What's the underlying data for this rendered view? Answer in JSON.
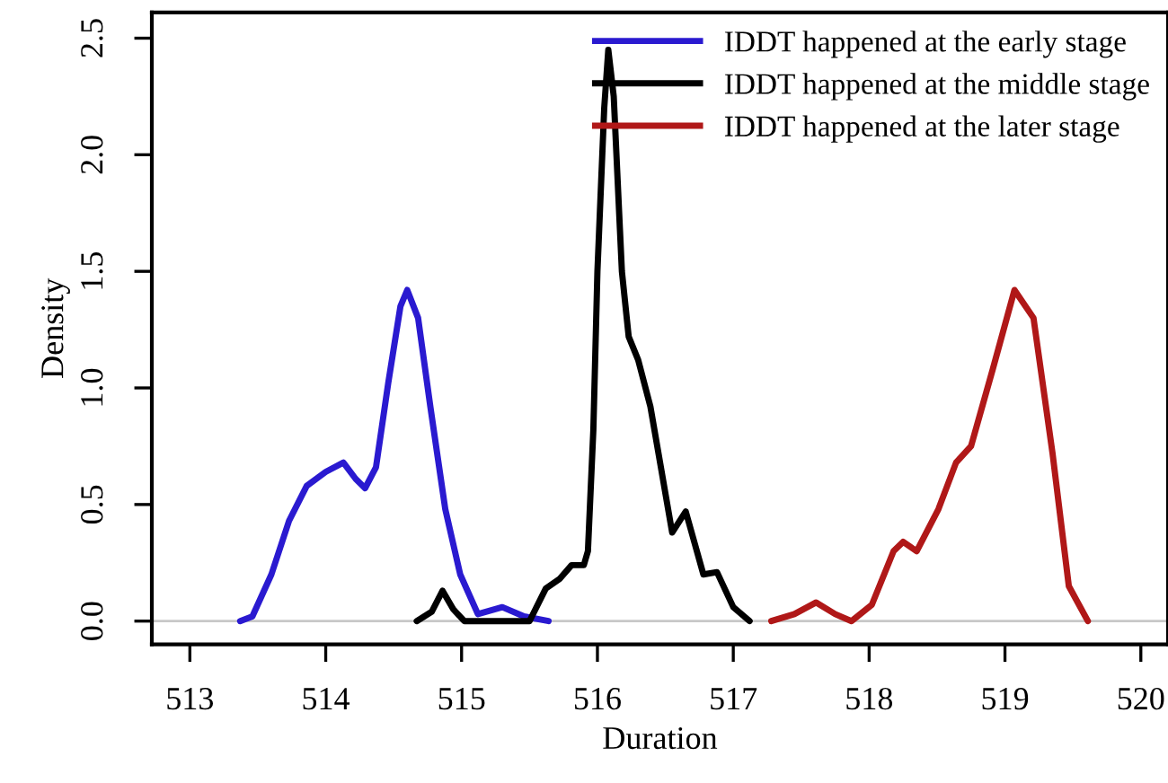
{
  "chart_data": {
    "type": "line",
    "xlabel": "Duration",
    "ylabel": "Density",
    "xlim": [
      512.72,
      520.2
    ],
    "ylim": [
      -0.1,
      2.61
    ],
    "xticks": [
      513,
      514,
      515,
      516,
      517,
      518,
      519,
      520
    ],
    "yticks": [
      {
        "value": 0,
        "label": "0.0"
      },
      {
        "value": 0.5,
        "label": "0.5"
      },
      {
        "value": 1,
        "label": "1.0"
      },
      {
        "value": 1.5,
        "label": "1.5"
      },
      {
        "value": 2,
        "label": "2.0"
      },
      {
        "value": 2.5,
        "label": "2.5"
      }
    ],
    "grid": false,
    "legend": "top right",
    "marker": "none",
    "line_style": "solid",
    "ref_lines": [
      {
        "axis": "y",
        "value": 0,
        "color": "#c8c8c8"
      }
    ],
    "series": [
      {
        "name": "IDDT happened at the early stage",
        "color": "#2a1ad0",
        "x": [
          513.37,
          513.46,
          513.6,
          513.73,
          513.86,
          514.0,
          514.13,
          514.22,
          514.29,
          514.37,
          514.46,
          514.55,
          514.6,
          514.68,
          514.77,
          514.88,
          514.99,
          515.12,
          515.3,
          515.46,
          515.64
        ],
        "values": [
          0,
          0.02,
          0.2,
          0.43,
          0.58,
          0.64,
          0.68,
          0.61,
          0.57,
          0.66,
          1.02,
          1.35,
          1.42,
          1.3,
          0.92,
          0.48,
          0.2,
          0.03,
          0.06,
          0.02,
          0
        ]
      },
      {
        "name": "IDDT happened at the middle stage",
        "color": "#000000",
        "x": [
          514.67,
          514.78,
          514.86,
          514.94,
          515.02,
          515.5,
          515.62,
          515.72,
          515.81,
          515.9,
          515.93,
          515.97,
          516.0,
          516.05,
          516.08,
          516.12,
          516.18,
          516.23,
          516.3,
          516.39,
          516.55,
          516.65,
          516.78,
          516.88,
          517.0,
          517.12
        ],
        "values": [
          0,
          0.04,
          0.13,
          0.05,
          0,
          0,
          0.14,
          0.18,
          0.24,
          0.24,
          0.3,
          0.82,
          1.5,
          2.2,
          2.45,
          2.25,
          1.5,
          1.22,
          1.12,
          0.92,
          0.38,
          0.47,
          0.2,
          0.21,
          0.06,
          0
        ]
      },
      {
        "name": "IDDT happened at the later stage",
        "color": "#b01818",
        "x": [
          517.28,
          517.45,
          517.61,
          517.75,
          517.87,
          518.02,
          518.18,
          518.25,
          518.35,
          518.51,
          518.64,
          518.75,
          518.91,
          519.07,
          519.21,
          519.35,
          519.47,
          519.61
        ],
        "values": [
          0,
          0.03,
          0.08,
          0.03,
          0,
          0.07,
          0.3,
          0.34,
          0.3,
          0.48,
          0.68,
          0.75,
          1.08,
          1.42,
          1.3,
          0.72,
          0.15,
          0
        ]
      }
    ]
  }
}
